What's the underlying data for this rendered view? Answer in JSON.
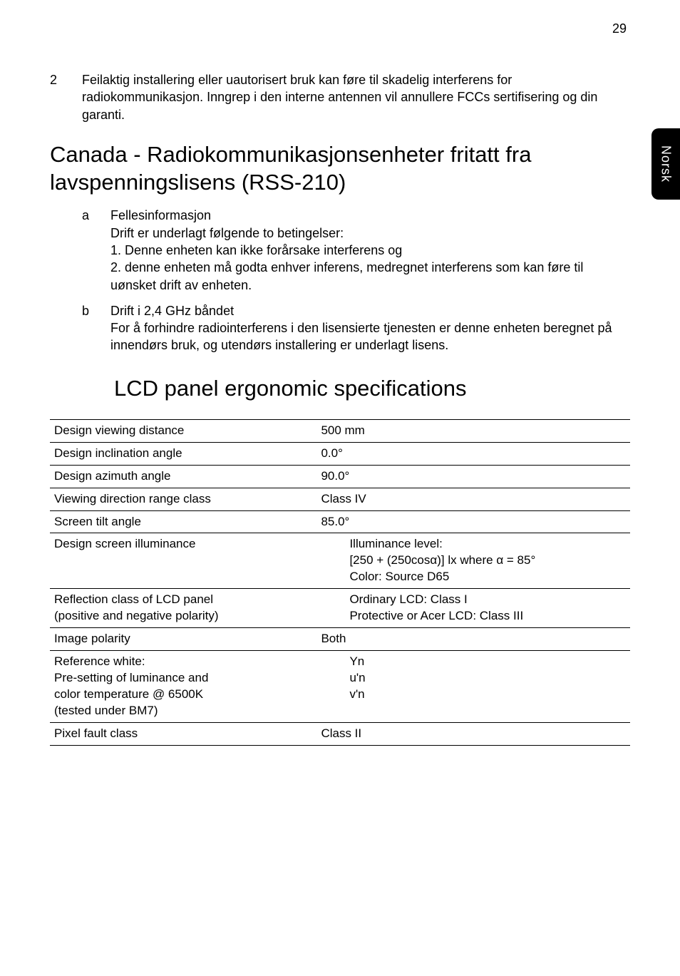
{
  "page_number": "29",
  "side_tab": "Norsk",
  "item2": {
    "num": "2",
    "text": "Feilaktig installering eller uautorisert bruk kan føre til skadelig interferens for radiokommunikasjon. Inngrep i den interne antennen vil annullere FCCs sertifisering og din garanti."
  },
  "heading1": "Canada - Radiokommunikasjonsenheter fritatt fra lavspenningslisens (RSS-210)",
  "list1": {
    "a": {
      "letter": "a",
      "title": "Fellesinformasjon",
      "l1": "Drift er underlagt følgende to betingelser:",
      "l2": "1. Denne enheten kan ikke forårsake interferens og",
      "l3": "2. denne enheten må godta enhver inferens, medregnet interferens som kan føre til uønsket drift av enheten."
    },
    "b": {
      "letter": "b",
      "title": "Drift i 2,4 GHz båndet",
      "l1": "For å forhindre radiointerferens i den lisensierte tjenesten er denne enheten beregnet på innendørs bruk, og utendørs installering er underlagt lisens."
    }
  },
  "heading2": "LCD panel ergonomic specifications",
  "table": {
    "r1": {
      "c1": "Design viewing distance",
      "c2": "500 mm"
    },
    "r2": {
      "c1": "Design inclination angle",
      "c2": "0.0°"
    },
    "r3": {
      "c1": "Design azimuth angle",
      "c2": "90.0°"
    },
    "r4": {
      "c1": "Viewing direction range class",
      "c2": "Class IV"
    },
    "r5": {
      "c1": "Screen tilt angle",
      "c2": "85.0°"
    },
    "r6": {
      "c1": "Design screen illuminance",
      "v1": "Illuminance level:",
      "v2": "[250 + (250cosα)] lx where α = 85°",
      "v3": "Color: Source D65"
    },
    "r7": {
      "c1a": "Reflection class of LCD panel",
      "c1b": "(positive and negative polarity)",
      "v1": "Ordinary LCD: Class I",
      "v2": "Protective or Acer LCD: Class III"
    },
    "r8": {
      "c1": "Image polarity",
      "c2": "Both"
    },
    "r9": {
      "c1a": "Reference white:",
      "c1b": "Pre-setting of luminance and",
      "c1c": "color temperature @ 6500K",
      "c1d": "(tested under BM7)",
      "v1": "Yn",
      "v2": "u'n",
      "v3": "v'n"
    },
    "r10": {
      "c1": "Pixel fault class",
      "c2": "Class II"
    }
  }
}
